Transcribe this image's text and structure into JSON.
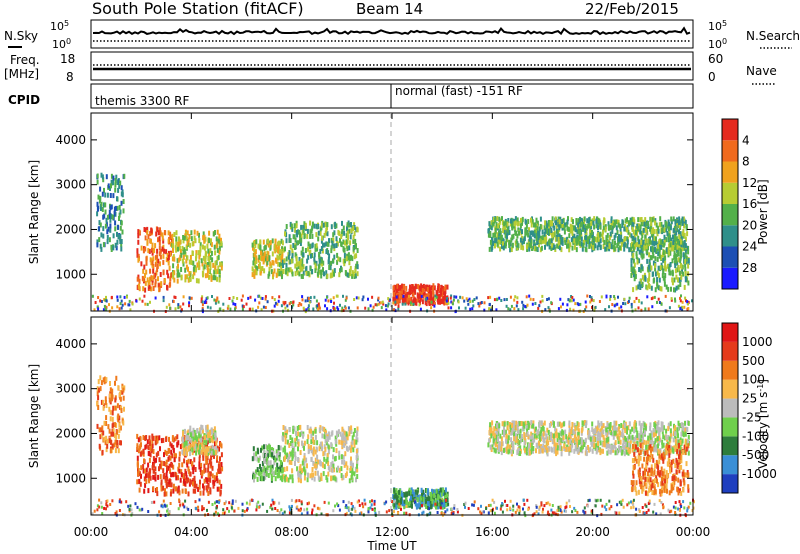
{
  "header": {
    "title": "South Pole Station (fitACF)",
    "beam": "Beam 14",
    "date": "22/Feb/2015"
  },
  "panels": {
    "nsky_label": "N.Sky",
    "nsearch_label": "N.Search",
    "nsky_ticks": [
      "10^5",
      "10^0"
    ],
    "nsearch_ticks": [
      "10^5",
      "10^0"
    ],
    "freq_label_1": "Freq.",
    "freq_label_2": "[MHz]",
    "freq_ticks": [
      "18",
      "8"
    ],
    "nave_label": "Nave",
    "nave_ticks": [
      "60",
      "0"
    ],
    "cpid_label": "CPID",
    "cpid_segments": [
      {
        "label": "themis 3300 RF",
        "start_hour": 0
      },
      {
        "label": "normal (fast) -151 RF",
        "start_hour": 12
      }
    ]
  },
  "x_axis": {
    "label": "Time UT",
    "ticks": [
      "00:00",
      "04:00",
      "08:00",
      "12:00",
      "16:00",
      "20:00",
      "00:00"
    ]
  },
  "chart_data": [
    {
      "type": "heatmap",
      "name": "power",
      "xlabel": "Time UT",
      "ylabel": "Slant Range [km]",
      "xlim": [
        0,
        24
      ],
      "ylim": [
        180,
        4600
      ],
      "y_ticks": [
        "1000",
        "2000",
        "3000",
        "4000"
      ],
      "colorbar": {
        "label": "Power [dB]",
        "ticks": [
          "4",
          "8",
          "12",
          "16",
          "20",
          "24",
          "28"
        ],
        "colors": [
          "#1a1aff",
          "#1c4fb4",
          "#2f8f8a",
          "#53b04a",
          "#b7cc33",
          "#f0a21e",
          "#f06a1e",
          "#e52a1f"
        ]
      },
      "echo_regions": [
        {
          "t": [
            0.2,
            1.3
          ],
          "r": [
            1600,
            3300
          ],
          "level": 2
        },
        {
          "t": [
            1.8,
            3.2
          ],
          "r": [
            700,
            2100
          ],
          "level": 6
        },
        {
          "t": [
            3.2,
            5.2
          ],
          "r": [
            900,
            2000
          ],
          "level": 4
        },
        {
          "t": [
            6.4,
            7.6
          ],
          "r": [
            1000,
            1800
          ],
          "level": 4
        },
        {
          "t": [
            7.6,
            10.6
          ],
          "r": [
            1000,
            2200
          ],
          "level": 3
        },
        {
          "t": [
            12.0,
            14.2
          ],
          "r": [
            400,
            800
          ],
          "level": 7
        },
        {
          "t": [
            15.8,
            23.8
          ],
          "r": [
            1600,
            2300
          ],
          "level": 3
        },
        {
          "t": [
            21.5,
            23.8
          ],
          "r": [
            700,
            1800
          ],
          "level": 3
        }
      ]
    },
    {
      "type": "heatmap",
      "name": "velocity",
      "xlabel": "Time UT",
      "ylabel": "Slant Range [km]",
      "xlim": [
        0,
        24
      ],
      "ylim": [
        180,
        4600
      ],
      "y_ticks": [
        "1000",
        "2000",
        "3000",
        "4000"
      ],
      "colorbar": {
        "label": "Velocity [m s^-1]",
        "ticks": [
          "1000",
          "500",
          "100",
          "25",
          "-25",
          "-100",
          "-500",
          "-1000"
        ],
        "colors": [
          "#1f3fbf",
          "#3a8fd6",
          "#2e7d3c",
          "#6fd04c",
          "#bcbcbc",
          "#f7b84a",
          "#ef7a1c",
          "#e53a1b",
          "#e01616"
        ]
      },
      "echo_regions": [
        {
          "t": [
            0.2,
            1.3
          ],
          "r": [
            1600,
            3300
          ],
          "level": 6
        },
        {
          "t": [
            1.8,
            5.2
          ],
          "r": [
            700,
            2000
          ],
          "level": 7
        },
        {
          "t": [
            3.6,
            5.0
          ],
          "r": [
            1600,
            2200
          ],
          "level": 4
        },
        {
          "t": [
            6.4,
            7.6
          ],
          "r": [
            1000,
            1800
          ],
          "level": 3
        },
        {
          "t": [
            7.6,
            10.6
          ],
          "r": [
            1000,
            2200
          ],
          "level": 4
        },
        {
          "t": [
            12.0,
            14.2
          ],
          "r": [
            400,
            800
          ],
          "level": 2
        },
        {
          "t": [
            15.8,
            23.8
          ],
          "r": [
            1600,
            2300
          ],
          "level": 4
        },
        {
          "t": [
            21.5,
            23.8
          ],
          "r": [
            700,
            1800
          ],
          "level": 6
        }
      ]
    }
  ]
}
